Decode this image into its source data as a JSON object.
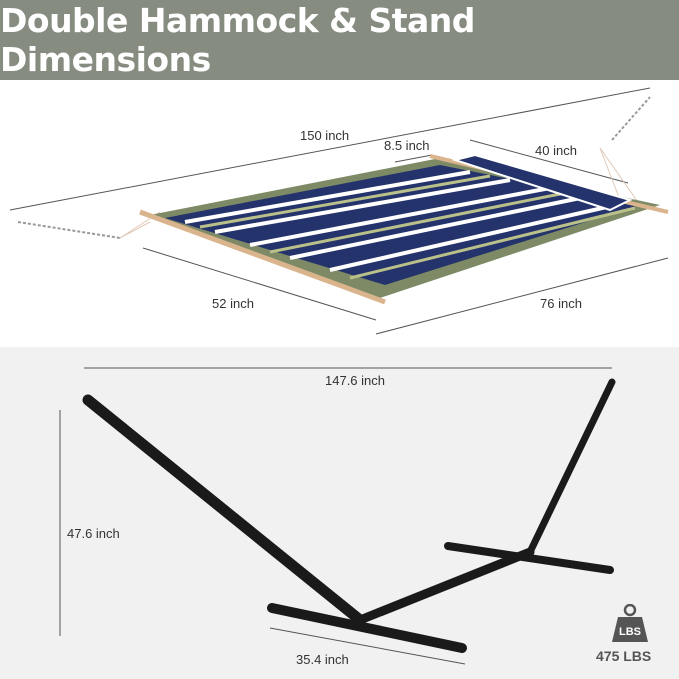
{
  "title": "Double Hammock & Stand Dimensions",
  "hammock": {
    "length": "150 inch",
    "pillow_width": "8.5 inch",
    "pillow_length": "40 inch",
    "bed_width": "52 inch",
    "bed_length": "76 inch"
  },
  "stand": {
    "length": "147.6 inch",
    "height": "47.6 inch",
    "base_width": "35.4 inch"
  },
  "capacity": {
    "icon": "weight-icon",
    "icon_text": "LBS",
    "value": "475 LBS"
  },
  "colors": {
    "header": "#868c80",
    "stand": "#1a1a1a",
    "stripe_navy": "#24336b",
    "stripe_green": "#7e8a66"
  }
}
